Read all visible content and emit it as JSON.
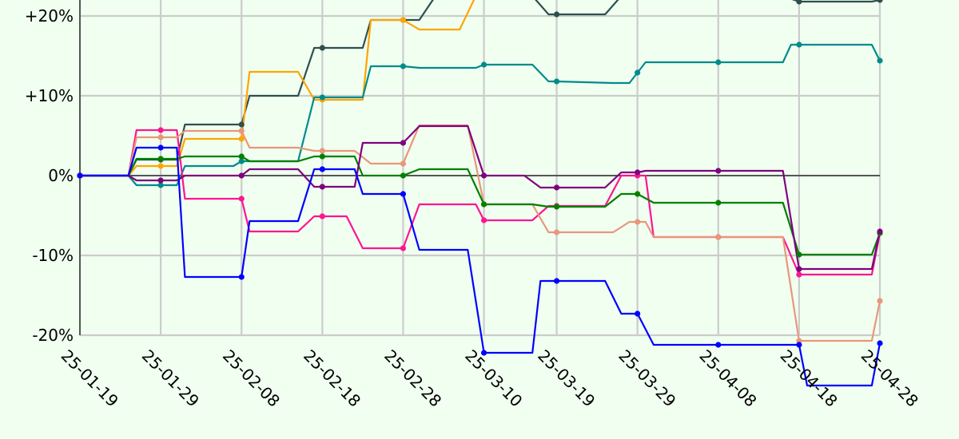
{
  "chart_data": {
    "type": "line",
    "title": "",
    "xlabel": "",
    "ylabel": "",
    "x_start": "25-01-19",
    "x_end": "25-04-28",
    "x_tick_labels": [
      "25-01-19",
      "25-01-29",
      "25-02-08",
      "25-02-18",
      "25-02-28",
      "25-03-10",
      "25-03-19",
      "25-03-29",
      "25-04-08",
      "25-04-18",
      "25-04-28"
    ],
    "y_range": [
      -20,
      20
    ],
    "y_ticks": [
      20,
      10,
      0,
      -10,
      -20
    ],
    "y_tick_labels": [
      "+20%",
      "+10%",
      "0%",
      "-10%",
      "-20%"
    ],
    "grid": true,
    "legend": "none",
    "series": [
      {
        "color": "#2f4f4f",
        "points": [
          [
            "25-01-19",
            0
          ],
          [
            "25-01-25",
            0
          ],
          [
            "25-01-26",
            2
          ],
          [
            "25-01-29",
            2
          ],
          [
            "25-01-31",
            2
          ],
          [
            "25-02-01",
            6.4
          ],
          [
            "25-02-07",
            6.4
          ],
          [
            "25-02-08",
            6.4
          ],
          [
            "25-02-09",
            10
          ],
          [
            "25-02-15",
            10
          ],
          [
            "25-02-17",
            16
          ],
          [
            "25-02-18",
            16
          ],
          [
            "25-02-23",
            16
          ],
          [
            "25-02-24",
            19.5
          ],
          [
            "25-02-28",
            19.5
          ],
          [
            "25-03-02",
            19.5
          ],
          [
            "25-03-04",
            23
          ],
          [
            "25-03-16",
            23
          ],
          [
            "25-03-18",
            20.2
          ],
          [
            "25-03-19",
            20.2
          ],
          [
            "25-03-25",
            20.2
          ],
          [
            "25-03-27",
            24
          ],
          [
            "25-04-16",
            24
          ],
          [
            "25-04-18",
            21.8
          ],
          [
            "25-04-27",
            21.8
          ],
          [
            "25-04-28",
            22
          ]
        ]
      },
      {
        "color": "#ffa500",
        "points": [
          [
            "25-01-19",
            0
          ],
          [
            "25-01-25",
            0
          ],
          [
            "25-01-26",
            1.2
          ],
          [
            "25-01-29",
            1.2
          ],
          [
            "25-01-31",
            1.2
          ],
          [
            "25-02-01",
            4.6
          ],
          [
            "25-02-07",
            4.6
          ],
          [
            "25-02-08",
            4.6
          ],
          [
            "25-02-09",
            13
          ],
          [
            "25-02-15",
            13
          ],
          [
            "25-02-17",
            9.5
          ],
          [
            "25-02-18",
            9.5
          ],
          [
            "25-02-23",
            9.5
          ],
          [
            "25-02-24",
            19.5
          ],
          [
            "25-02-28",
            19.5
          ],
          [
            "25-03-02",
            18.3
          ],
          [
            "25-03-07",
            18.3
          ],
          [
            "25-03-09",
            23.5
          ],
          [
            "25-04-28",
            23.5
          ]
        ]
      },
      {
        "color": "#008b8b",
        "points": [
          [
            "25-01-19",
            0
          ],
          [
            "25-01-25",
            0
          ],
          [
            "25-01-26",
            -1.2
          ],
          [
            "25-01-29",
            -1.2
          ],
          [
            "25-01-31",
            -1.2
          ],
          [
            "25-02-01",
            1.2
          ],
          [
            "25-02-07",
            1.2
          ],
          [
            "25-02-08",
            1.8
          ],
          [
            "25-02-15",
            1.8
          ],
          [
            "25-02-17",
            9.8
          ],
          [
            "25-02-18",
            9.8
          ],
          [
            "25-02-23",
            9.8
          ],
          [
            "25-02-24",
            13.7
          ],
          [
            "25-02-28",
            13.7
          ],
          [
            "25-03-02",
            13.5
          ],
          [
            "25-03-09",
            13.5
          ],
          [
            "25-03-10",
            13.9
          ],
          [
            "25-03-16",
            13.9
          ],
          [
            "25-03-18",
            11.8
          ],
          [
            "25-03-19",
            11.8
          ],
          [
            "25-03-26",
            11.6
          ],
          [
            "25-03-28",
            11.6
          ],
          [
            "25-03-30",
            14.2
          ],
          [
            "25-04-08",
            14.2
          ],
          [
            "25-04-16",
            14.2
          ],
          [
            "25-04-17",
            16.4
          ],
          [
            "25-04-21",
            16.4
          ],
          [
            "25-04-27",
            16.4
          ],
          [
            "25-04-28",
            14.4
          ]
        ]
      },
      {
        "color": "#ff1493",
        "points": [
          [
            "25-01-19",
            0
          ],
          [
            "25-01-25",
            0
          ],
          [
            "25-01-26",
            5.7
          ],
          [
            "25-01-29",
            5.7
          ],
          [
            "25-01-31",
            5.7
          ],
          [
            "25-02-01",
            -2.9
          ],
          [
            "25-02-07",
            -2.9
          ],
          [
            "25-02-08",
            -2.9
          ],
          [
            "25-02-09",
            -7
          ],
          [
            "25-02-15",
            -7
          ],
          [
            "25-02-17",
            -5.1
          ],
          [
            "25-02-18",
            -5.1
          ],
          [
            "25-02-21",
            -5.1
          ],
          [
            "25-02-23",
            -9.1
          ],
          [
            "25-02-28",
            -9.1
          ],
          [
            "25-03-02",
            -3.6
          ],
          [
            "25-03-09",
            -3.6
          ],
          [
            "25-03-10",
            -5.6
          ],
          [
            "25-03-16",
            -5.6
          ],
          [
            "25-03-18",
            -3.8
          ],
          [
            "25-03-19",
            -3.8
          ],
          [
            "25-03-25",
            -3.8
          ],
          [
            "25-03-27",
            0
          ],
          [
            "25-03-30",
            0
          ],
          [
            "25-03-31",
            -7.7
          ],
          [
            "25-04-08",
            -7.7
          ],
          [
            "25-04-16",
            -7.7
          ],
          [
            "25-04-18",
            -12.4
          ],
          [
            "25-04-27",
            -12.4
          ],
          [
            "25-04-28",
            -7.2
          ]
        ]
      },
      {
        "color": "#e9967a",
        "points": [
          [
            "25-01-19",
            0
          ],
          [
            "25-01-25",
            0
          ],
          [
            "25-01-26",
            4.8
          ],
          [
            "25-01-29",
            4.8
          ],
          [
            "25-01-31",
            4.8
          ],
          [
            "25-02-01",
            5.6
          ],
          [
            "25-02-07",
            5.6
          ],
          [
            "25-02-08",
            5.6
          ],
          [
            "25-02-09",
            3.5
          ],
          [
            "25-02-15",
            3.5
          ],
          [
            "25-02-17",
            3.1
          ],
          [
            "25-02-18",
            3.1
          ],
          [
            "25-02-22",
            3.1
          ],
          [
            "25-02-24",
            1.5
          ],
          [
            "25-02-28",
            1.5
          ],
          [
            "25-03-02",
            6.3
          ],
          [
            "25-03-08",
            6.3
          ],
          [
            "25-03-10",
            -3.6
          ],
          [
            "25-03-16",
            -3.6
          ],
          [
            "25-03-18",
            -7.1
          ],
          [
            "25-03-19",
            -7.1
          ],
          [
            "25-03-26",
            -7.1
          ],
          [
            "25-03-28",
            -5.8
          ],
          [
            "25-03-30",
            -5.8
          ],
          [
            "25-03-31",
            -7.7
          ],
          [
            "25-04-08",
            -7.7
          ],
          [
            "25-04-16",
            -7.7
          ],
          [
            "25-04-18",
            -20.7
          ],
          [
            "25-04-27",
            -20.7
          ],
          [
            "25-04-28",
            -15.7
          ]
        ]
      },
      {
        "color": "#008000",
        "points": [
          [
            "25-01-19",
            0
          ],
          [
            "25-01-25",
            0
          ],
          [
            "25-01-26",
            2.1
          ],
          [
            "25-01-29",
            2.1
          ],
          [
            "25-01-31",
            2.1
          ],
          [
            "25-02-01",
            2.4
          ],
          [
            "25-02-07",
            2.4
          ],
          [
            "25-02-08",
            2.4
          ],
          [
            "25-02-09",
            1.8
          ],
          [
            "25-02-15",
            1.8
          ],
          [
            "25-02-17",
            2.4
          ],
          [
            "25-02-18",
            2.4
          ],
          [
            "25-02-22",
            2.4
          ],
          [
            "25-02-23",
            0
          ],
          [
            "25-02-28",
            0
          ],
          [
            "25-03-02",
            0.8
          ],
          [
            "25-03-08",
            0.8
          ],
          [
            "25-03-10",
            -3.6
          ],
          [
            "25-03-16",
            -3.6
          ],
          [
            "25-03-18",
            -3.9
          ],
          [
            "25-03-19",
            -3.9
          ],
          [
            "25-03-25",
            -3.9
          ],
          [
            "25-03-27",
            -2.3
          ],
          [
            "25-03-29",
            -2.3
          ],
          [
            "25-03-31",
            -3.4
          ],
          [
            "25-04-08",
            -3.4
          ],
          [
            "25-04-16",
            -3.4
          ],
          [
            "25-04-18",
            -9.9
          ],
          [
            "25-04-27",
            -9.9
          ],
          [
            "25-04-28",
            -7.2
          ]
        ]
      },
      {
        "color": "#800080",
        "points": [
          [
            "25-01-19",
            0
          ],
          [
            "25-01-25",
            0
          ],
          [
            "25-01-26",
            -0.6
          ],
          [
            "25-01-29",
            -0.6
          ],
          [
            "25-01-31",
            -0.6
          ],
          [
            "25-02-01",
            0
          ],
          [
            "25-02-07",
            0
          ],
          [
            "25-02-08",
            0
          ],
          [
            "25-02-09",
            0.8
          ],
          [
            "25-02-15",
            0.8
          ],
          [
            "25-02-17",
            -1.4
          ],
          [
            "25-02-18",
            -1.4
          ],
          [
            "25-02-22",
            -1.4
          ],
          [
            "25-02-23",
            4.1
          ],
          [
            "25-02-28",
            4.1
          ],
          [
            "25-03-02",
            6.2
          ],
          [
            "25-03-08",
            6.2
          ],
          [
            "25-03-10",
            0
          ],
          [
            "25-03-15",
            0
          ],
          [
            "25-03-17",
            -1.5
          ],
          [
            "25-03-19",
            -1.5
          ],
          [
            "25-03-25",
            -1.5
          ],
          [
            "25-03-27",
            0.4
          ],
          [
            "25-03-29",
            0.4
          ],
          [
            "25-03-30",
            0.6
          ],
          [
            "25-04-08",
            0.6
          ],
          [
            "25-04-16",
            0.6
          ],
          [
            "25-04-18",
            -11.7
          ],
          [
            "25-04-27",
            -11.7
          ],
          [
            "25-04-28",
            -7
          ]
        ]
      },
      {
        "color": "#0000ff",
        "points": [
          [
            "25-01-19",
            0
          ],
          [
            "25-01-25",
            0
          ],
          [
            "25-01-26",
            3.5
          ],
          [
            "25-01-29",
            3.5
          ],
          [
            "25-01-31",
            3.5
          ],
          [
            "25-02-01",
            -12.7
          ],
          [
            "25-02-07",
            -12.7
          ],
          [
            "25-02-08",
            -12.7
          ],
          [
            "25-02-09",
            -5.7
          ],
          [
            "25-02-15",
            -5.7
          ],
          [
            "25-02-17",
            0.8
          ],
          [
            "25-02-18",
            0.8
          ],
          [
            "25-02-22",
            0.8
          ],
          [
            "25-02-23",
            -2.3
          ],
          [
            "25-02-28",
            -2.3
          ],
          [
            "25-03-02",
            -9.3
          ],
          [
            "25-03-08",
            -9.3
          ],
          [
            "25-03-10",
            -22.2
          ],
          [
            "25-03-16",
            -22.2
          ],
          [
            "25-03-17",
            -13.2
          ],
          [
            "25-03-19",
            -13.2
          ],
          [
            "25-03-25",
            -13.2
          ],
          [
            "25-03-27",
            -17.3
          ],
          [
            "25-03-29",
            -17.3
          ],
          [
            "25-03-31",
            -21.2
          ],
          [
            "25-04-08",
            -21.2
          ],
          [
            "25-04-18",
            -21.2
          ],
          [
            "25-04-19",
            -26.3
          ],
          [
            "25-04-27",
            -26.3
          ],
          [
            "25-04-28",
            -21
          ]
        ]
      }
    ]
  }
}
